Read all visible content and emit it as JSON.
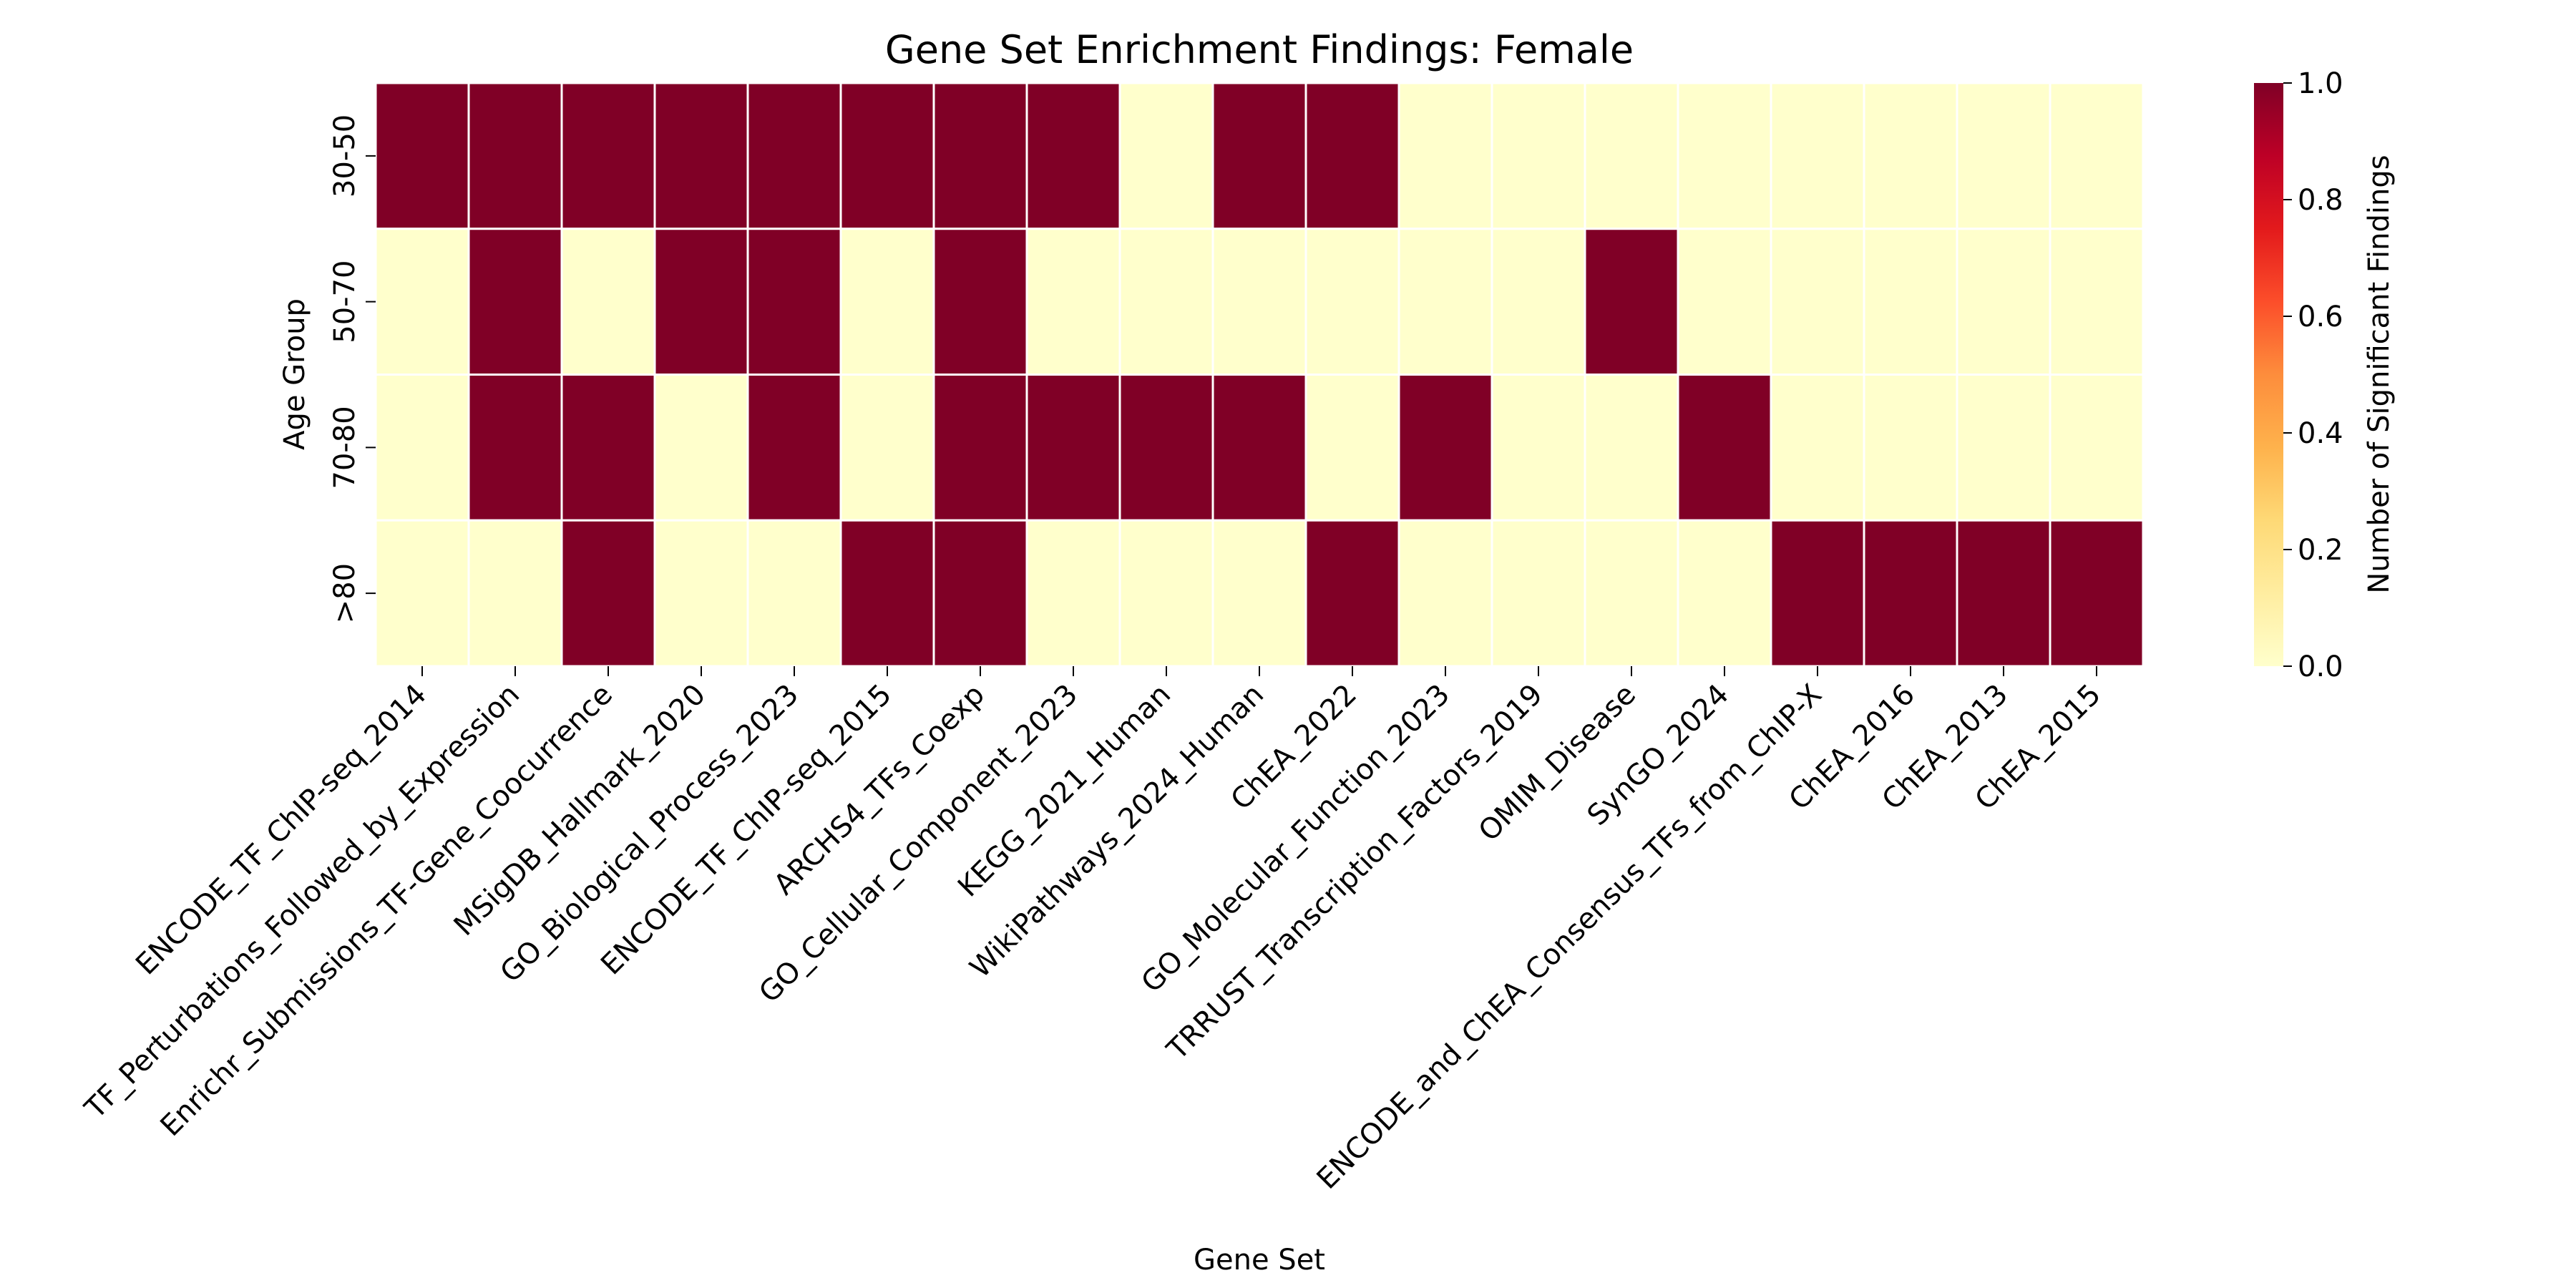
{
  "chart_data": {
    "type": "heatmap",
    "title": "Gene Set Enrichment Findings: Female",
    "xlabel": "Gene Set",
    "ylabel": "Age Group",
    "x": [
      "ENCODE_TF_ChIP-seq_2014",
      "TF_Perturbations_Followed_by_Expression",
      "Enrichr_Submissions_TF-Gene_Coocurrence",
      "MSigDB_Hallmark_2020",
      "GO_Biological_Process_2023",
      "ENCODE_TF_ChIP-seq_2015",
      "ARCHS4_TFs_Coexp",
      "GO_Cellular_Component_2023",
      "KEGG_2021_Human",
      "WikiPathways_2024_Human",
      "ChEA_2022",
      "GO_Molecular_Function_2023",
      "TRRUST_Transcription_Factors_2019",
      "OMIM_Disease",
      "SynGO_2024",
      "ENCODE_and_ChEA_Consensus_TFs_from_ChIP-X",
      "ChEA_2016",
      "ChEA_2013",
      "ChEA_2015"
    ],
    "y": [
      "30-50",
      "50-70",
      "70-80",
      ">80"
    ],
    "values": [
      [
        1,
        1,
        1,
        1,
        1,
        1,
        1,
        1,
        0,
        1,
        1,
        0,
        0,
        0,
        0,
        0,
        0,
        0,
        0
      ],
      [
        0,
        1,
        0,
        1,
        1,
        0,
        1,
        0,
        0,
        0,
        0,
        0,
        0,
        1,
        0,
        0,
        0,
        0,
        0
      ],
      [
        0,
        1,
        1,
        0,
        1,
        0,
        1,
        1,
        1,
        1,
        0,
        1,
        0,
        0,
        1,
        0,
        0,
        0,
        0
      ],
      [
        0,
        0,
        1,
        0,
        0,
        1,
        1,
        0,
        0,
        0,
        1,
        0,
        0,
        0,
        0,
        1,
        1,
        1,
        1
      ]
    ],
    "colorbar": {
      "label": "Number of Significant Findings",
      "range": [
        0,
        1
      ],
      "ticks": [
        "0.0",
        "0.2",
        "0.4",
        "0.6",
        "0.8",
        "1.0"
      ],
      "colormap": "YlOrRd",
      "low_color": "#ffffcc",
      "high_color": "#800026"
    },
    "grid": false,
    "cell_border_color": "#ffffff"
  }
}
